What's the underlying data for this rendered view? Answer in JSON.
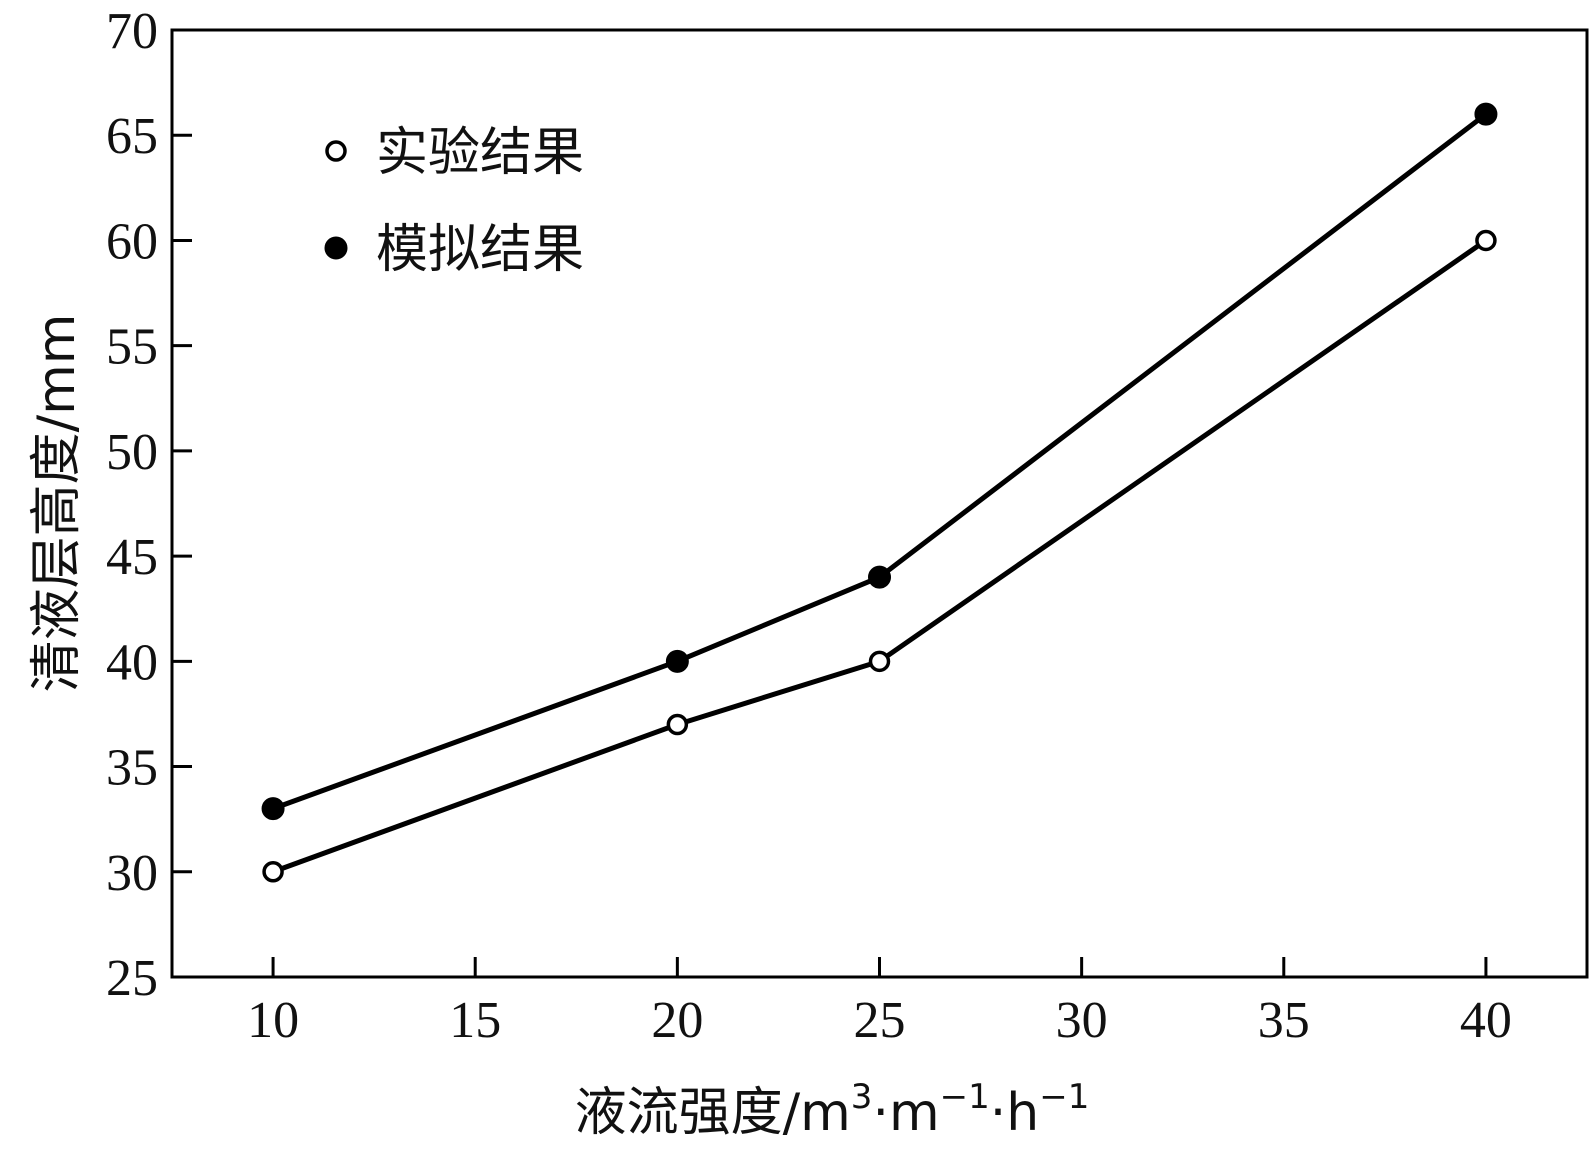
{
  "chart_data": {
    "type": "line",
    "title": "",
    "xlabel": {
      "base": "液流强度/m",
      "sup1": "3",
      "mid": "·m",
      "sup2": "−1",
      "mid2": "·h",
      "sup3": "−1"
    },
    "ylabel": "清液层高度/mm",
    "xlim": [
      7.5,
      42.5
    ],
    "ylim": [
      25,
      70
    ],
    "xticks": [
      10,
      15,
      20,
      25,
      30,
      35,
      40
    ],
    "yticks": [
      25,
      30,
      35,
      40,
      45,
      50,
      55,
      60,
      65,
      70
    ],
    "grid": false,
    "legend_position": "top-left",
    "series": [
      {
        "name": "实验结果",
        "marker": "open-circle",
        "color": "#000000",
        "x": [
          10,
          20,
          25,
          40
        ],
        "y": [
          30,
          37,
          40,
          60
        ]
      },
      {
        "name": "模拟结果",
        "marker": "filled-circle",
        "color": "#000000",
        "x": [
          10,
          20,
          25,
          40
        ],
        "y": [
          33,
          40,
          44,
          66
        ]
      }
    ]
  }
}
